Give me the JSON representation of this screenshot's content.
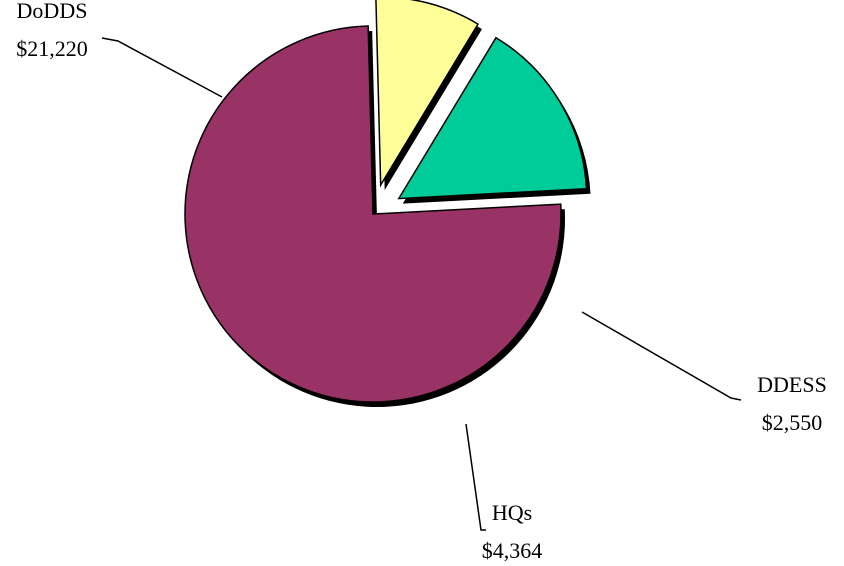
{
  "chart_data": {
    "type": "pie",
    "title": "",
    "slices": [
      {
        "name": "DoDDS",
        "value": 21220,
        "value_label": "$21,220",
        "color": "#993366"
      },
      {
        "name": "DDESS",
        "value": 2550,
        "value_label": "$2,550",
        "color": "#FFFF99"
      },
      {
        "name": "HQs",
        "value": 4364,
        "value_label": "$4,364",
        "color": "#00CC99"
      }
    ],
    "exploded": [
      "DDESS",
      "HQs"
    ],
    "legend": "none",
    "shadow": true
  }
}
